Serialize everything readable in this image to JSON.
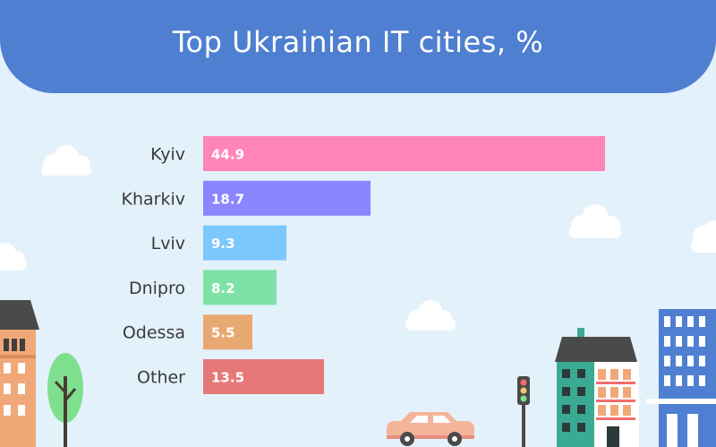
{
  "header": {
    "title": "Top Ukrainian IT cities, %"
  },
  "colors": {
    "background": "#e3f1fb",
    "banner": "#4f7fd1",
    "bars": [
      "#ff84b8",
      "#8a86ff",
      "#7dc7ff",
      "#7ee2a6",
      "#e8a872",
      "#e87878"
    ]
  },
  "chart_data": {
    "type": "bar",
    "orientation": "horizontal",
    "title": "Top Ukrainian IT cities, %",
    "categories": [
      "Kyiv",
      "Kharkiv",
      "Lviv",
      "Dnipro",
      "Odessa",
      "Other"
    ],
    "values": [
      44.9,
      18.7,
      9.3,
      8.2,
      5.5,
      13.5
    ],
    "data_labels": [
      "44.9",
      "18.7",
      "9.3",
      "8.2",
      "5.5",
      "13.5"
    ],
    "xlabel": "",
    "ylabel": "",
    "xlim": [
      0,
      44.9
    ],
    "grid": false
  }
}
